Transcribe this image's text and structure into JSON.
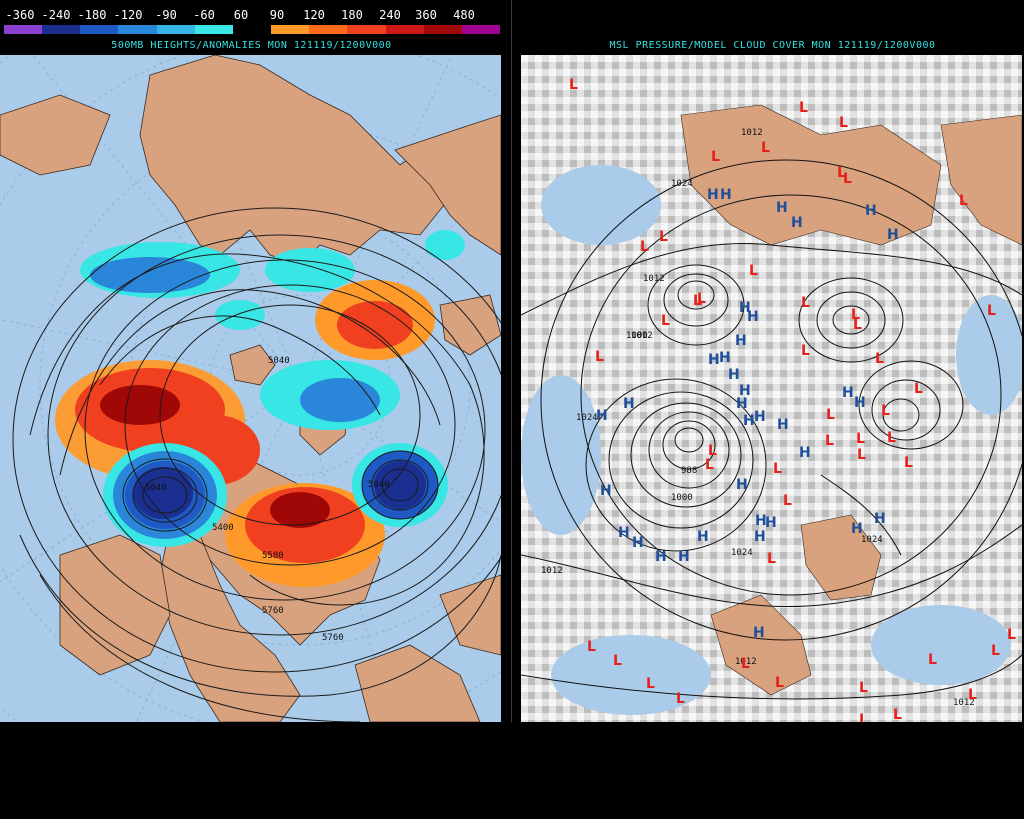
{
  "legend": {
    "labels": [
      "-360",
      "-240",
      "-180",
      "-120",
      "-90",
      "-60",
      "60",
      "90",
      "120",
      "180",
      "240",
      "360",
      "480"
    ],
    "colors": [
      "#8a3fd0",
      "#1a2f8f",
      "#1f59c4",
      "#2a86d8",
      "#35b4e8",
      "#38e6e6",
      "#000000",
      "#ff9a2a",
      "#ff6b1a",
      "#f04020",
      "#d01818",
      "#a00808",
      "#a00090"
    ]
  },
  "left_panel": {
    "title": "500MB HEIGHTS/ANOMALIES MON 121119/1200V000",
    "contour_labels": [
      "5040",
      "5040",
      "5040",
      "5400",
      "5580",
      "5760",
      "5760"
    ],
    "colors": {
      "ocean": "#aacbe9",
      "land": "#d9a27e",
      "contour": "#1a1a1a"
    }
  },
  "right_panel": {
    "title": "MSL PRESSURE/MODEL CLOUD COVER MON 121119/1200V000",
    "isobar_labels": [
      "1012",
      "1012",
      "1024",
      "1000",
      "1024",
      "988",
      "1000",
      "1012",
      "1012",
      "1012",
      "1024",
      "1012",
      "1024"
    ],
    "high_symbol": "H",
    "low_symbol": "L",
    "colors": {
      "high": "#1f4f9a",
      "low": "#e8201a",
      "cloud": "#ffffff",
      "ocean": "#aacbe9",
      "land": "#d9a27e"
    }
  }
}
